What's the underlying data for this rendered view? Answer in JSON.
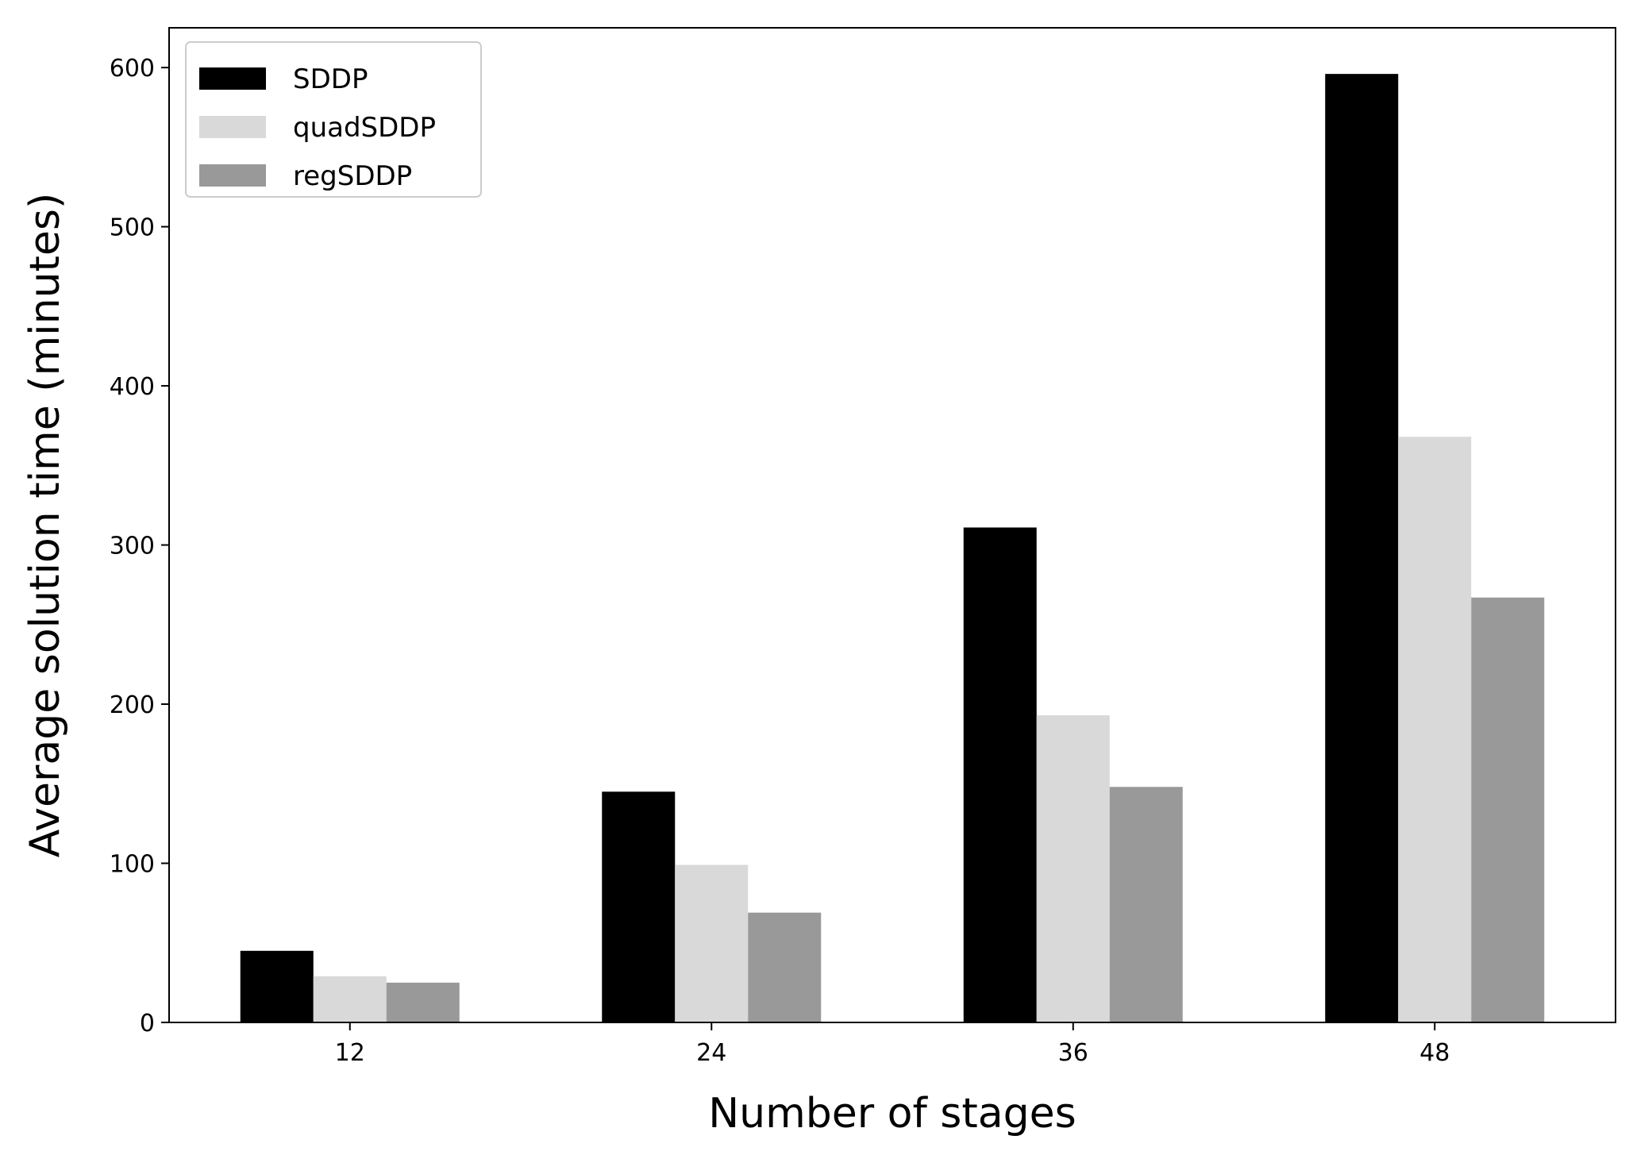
{
  "chart_data": {
    "type": "bar",
    "title": "",
    "xlabel": "Number of stages",
    "ylabel": "Average solution time (minutes)",
    "categories": [
      "12",
      "24",
      "36",
      "48"
    ],
    "series": [
      {
        "name": "SDDP",
        "color": "#000000",
        "values": [
          45,
          145,
          311,
          596
        ]
      },
      {
        "name": "quadSDDP",
        "color": "#d9d9d9",
        "values": [
          29,
          99,
          193,
          368
        ]
      },
      {
        "name": "regSDDP",
        "color": "#999999",
        "values": [
          25,
          69,
          148,
          267
        ]
      }
    ],
    "ylim": [
      0,
      625
    ],
    "yticks": [
      0,
      100,
      200,
      300,
      400,
      500,
      600
    ],
    "grid": false,
    "legend_position": "top-left"
  }
}
